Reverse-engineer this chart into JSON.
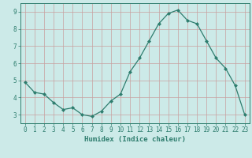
{
  "x": [
    0,
    1,
    2,
    3,
    4,
    5,
    6,
    7,
    8,
    9,
    10,
    11,
    12,
    13,
    14,
    15,
    16,
    17,
    18,
    19,
    20,
    21,
    22,
    23
  ],
  "y": [
    4.9,
    4.3,
    4.2,
    3.7,
    3.3,
    3.4,
    3.0,
    2.9,
    3.2,
    3.8,
    4.2,
    5.5,
    6.3,
    7.3,
    8.3,
    8.9,
    9.1,
    8.5,
    8.3,
    7.3,
    6.3,
    5.7,
    4.7,
    3.0
  ],
  "line_color": "#2e7d6e",
  "marker": "D",
  "marker_size": 2,
  "bg_color": "#cceae8",
  "grid_color": "#c8a0a0",
  "xlabel": "Humidex (Indice chaleur)",
  "xlim": [
    -0.5,
    23.5
  ],
  "ylim": [
    2.5,
    9.5
  ],
  "yticks": [
    3,
    4,
    5,
    6,
    7,
    8,
    9
  ],
  "xticks": [
    0,
    1,
    2,
    3,
    4,
    5,
    6,
    7,
    8,
    9,
    10,
    11,
    12,
    13,
    14,
    15,
    16,
    17,
    18,
    19,
    20,
    21,
    22,
    23
  ],
  "xlabel_fontsize": 6.5,
  "tick_fontsize": 5.5
}
